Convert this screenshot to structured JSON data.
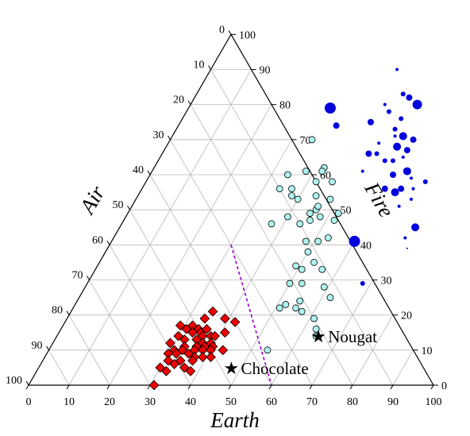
{
  "chart_data": {
    "type": "scatter",
    "subtype": "ternary",
    "axes": {
      "earth": {
        "label": "Earth",
        "range": [
          0,
          100
        ],
        "ticks": [
          0,
          10,
          20,
          30,
          40,
          50,
          60,
          70,
          80,
          90,
          100
        ]
      },
      "fire": {
        "label": "Fire",
        "range": [
          0,
          100
        ],
        "ticks": [
          0,
          10,
          20,
          30,
          40,
          50,
          60,
          70,
          80,
          90,
          100
        ]
      },
      "air": {
        "label": "Air",
        "range": [
          0,
          100
        ],
        "ticks": [
          0,
          10,
          20,
          30,
          40,
          50,
          60,
          70,
          80,
          90,
          100
        ]
      }
    },
    "grid": true,
    "grid_step": 10,
    "colors": {
      "blue": "#0000dd",
      "cyan": "#aef3ee",
      "red": "#ee0000",
      "divider": "#9900cc"
    },
    "divider_line": {
      "style": "dashed",
      "from": {
        "earth": 30,
        "fire": 40,
        "air": 30
      },
      "to": {
        "earth": 60,
        "fire": 0,
        "air": 40
      }
    },
    "annotations": [
      {
        "text": "Nougat",
        "marker": "★",
        "earth": 65,
        "fire": 14
      },
      {
        "text": "Chocolate",
        "marker": "★",
        "earth": 48,
        "fire": 5
      }
    ],
    "series": [
      {
        "marker": "circle",
        "color": "blue",
        "points": [
          {
            "earth": 46,
            "fire": 90,
            "size": 2
          },
          {
            "earth": 35,
            "fire": 79,
            "size": 7
          },
          {
            "earth": 48,
            "fire": 80,
            "size": 2
          },
          {
            "earth": 51,
            "fire": 83,
            "size": 3
          },
          {
            "earth": 53,
            "fire": 82,
            "size": 4
          },
          {
            "earth": 56,
            "fire": 80,
            "size": 6
          },
          {
            "earth": 50,
            "fire": 78,
            "size": 3
          },
          {
            "earth": 54,
            "fire": 76,
            "size": 3
          },
          {
            "earth": 39,
            "fire": 74,
            "size": 4
          },
          {
            "earth": 47,
            "fire": 75,
            "size": 4
          },
          {
            "earth": 54,
            "fire": 73,
            "size": 3
          },
          {
            "earth": 55,
            "fire": 71,
            "size": 2
          },
          {
            "earth": 52,
            "fire": 69,
            "size": 2
          },
          {
            "earth": 57,
            "fire": 71,
            "size": 5
          },
          {
            "earth": 57,
            "fire": 68,
            "size": 5
          },
          {
            "earth": 60,
            "fire": 70,
            "size": 4
          },
          {
            "earth": 51,
            "fire": 66,
            "size": 4
          },
          {
            "earth": 53,
            "fire": 66,
            "size": 3
          },
          {
            "earth": 56,
            "fire": 64,
            "size": 3
          },
          {
            "earth": 58,
            "fire": 64,
            "size": 3
          },
          {
            "earth": 60,
            "fire": 65,
            "size": 2
          },
          {
            "earth": 60,
            "fire": 67,
            "size": 4
          },
          {
            "earth": 52,
            "fire": 61,
            "size": 2
          },
          {
            "earth": 60,
            "fire": 60,
            "size": 4
          },
          {
            "earth": 63,
            "fire": 61,
            "size": 5
          },
          {
            "earth": 65,
            "fire": 59,
            "size": 2
          },
          {
            "earth": 60,
            "fire": 56,
            "size": 4
          },
          {
            "earth": 63,
            "fire": 55,
            "size": 5
          },
          {
            "earth": 64,
            "fire": 56,
            "size": 4
          },
          {
            "earth": 67,
            "fire": 56,
            "size": 2
          },
          {
            "earth": 69,
            "fire": 58,
            "size": 3
          },
          {
            "earth": 68,
            "fire": 53,
            "size": 2
          },
          {
            "earth": 66,
            "fire": 51,
            "size": 2
          },
          {
            "earth": 73,
            "fire": 45,
            "size": 5
          },
          {
            "earth": 72,
            "fire": 42,
            "size": 2
          },
          {
            "earth": 60,
            "fire": 41,
            "size": 7
          },
          {
            "earth": 74,
            "fire": 39,
            "size": 1
          },
          {
            "earth": 68,
            "fire": 29,
            "size": 3
          }
        ]
      },
      {
        "marker": "circle",
        "color": "cyan",
        "points": [
          {
            "earth": 35,
            "fire": 70
          },
          {
            "earth": 34,
            "fire": 60
          },
          {
            "earth": 38,
            "fire": 61
          },
          {
            "earth": 42,
            "fire": 62
          },
          {
            "earth": 42,
            "fire": 61
          },
          {
            "earth": 34,
            "fire": 56
          },
          {
            "earth": 37,
            "fire": 56
          },
          {
            "earth": 42,
            "fire": 58
          },
          {
            "earth": 46,
            "fire": 58
          },
          {
            "earth": 38,
            "fire": 54
          },
          {
            "earth": 44,
            "fire": 54
          },
          {
            "earth": 40,
            "fire": 53
          },
          {
            "earth": 46,
            "fire": 50
          },
          {
            "earth": 46,
            "fire": 51
          },
          {
            "earth": 48,
            "fire": 53
          },
          {
            "earth": 45,
            "fire": 49
          },
          {
            "earth": 40,
            "fire": 48
          },
          {
            "earth": 46,
            "fire": 47
          },
          {
            "earth": 48,
            "fire": 48
          },
          {
            "earth": 52,
            "fire": 49
          },
          {
            "earth": 37,
            "fire": 46
          },
          {
            "earth": 44,
            "fire": 46
          },
          {
            "earth": 52,
            "fire": 47
          },
          {
            "earth": 48,
            "fire": 41
          },
          {
            "earth": 51,
            "fire": 41
          },
          {
            "earth": 53,
            "fire": 42
          },
          {
            "earth": 50,
            "fire": 38
          },
          {
            "earth": 49,
            "fire": 34
          },
          {
            "earth": 51,
            "fire": 33
          },
          {
            "earth": 53,
            "fire": 35
          },
          {
            "earth": 56,
            "fire": 33
          },
          {
            "earth": 53,
            "fire": 29
          },
          {
            "earth": 50,
            "fire": 29
          },
          {
            "earth": 55,
            "fire": 24
          },
          {
            "earth": 59,
            "fire": 28
          },
          {
            "earth": 52,
            "fire": 23
          },
          {
            "earth": 51,
            "fire": 22
          },
          {
            "earth": 55,
            "fire": 22
          },
          {
            "earth": 57,
            "fire": 21
          },
          {
            "earth": 62,
            "fire": 25
          },
          {
            "earth": 61,
            "fire": 19
          },
          {
            "earth": 63,
            "fire": 16
          },
          {
            "earth": 64,
            "fire": 14
          },
          {
            "earth": 54,
            "fire": 10
          }
        ]
      },
      {
        "marker": "diamond",
        "color": "red",
        "points": [
          {
            "earth": 35,
            "fire": 21
          },
          {
            "earth": 34,
            "fire": 19
          },
          {
            "earth": 39,
            "fire": 19
          },
          {
            "earth": 42,
            "fire": 18
          },
          {
            "earth": 29,
            "fire": 17
          },
          {
            "earth": 32,
            "fire": 17
          },
          {
            "earth": 34,
            "fire": 16
          },
          {
            "earth": 36,
            "fire": 16
          },
          {
            "earth": 31,
            "fire": 16
          },
          {
            "earth": 33,
            "fire": 15
          },
          {
            "earth": 35,
            "fire": 15
          },
          {
            "earth": 36,
            "fire": 14
          },
          {
            "earth": 38,
            "fire": 14
          },
          {
            "earth": 39,
            "fire": 14
          },
          {
            "earth": 41,
            "fire": 15
          },
          {
            "earth": 30,
            "fire": 14
          },
          {
            "earth": 32,
            "fire": 13
          },
          {
            "earth": 35,
            "fire": 13
          },
          {
            "earth": 37,
            "fire": 12
          },
          {
            "earth": 39,
            "fire": 12
          },
          {
            "earth": 29,
            "fire": 12
          },
          {
            "earth": 33,
            "fire": 11
          },
          {
            "earth": 36,
            "fire": 11
          },
          {
            "earth": 38,
            "fire": 11
          },
          {
            "earth": 40,
            "fire": 11
          },
          {
            "earth": 31,
            "fire": 10
          },
          {
            "earth": 33,
            "fire": 10
          },
          {
            "earth": 36,
            "fire": 10
          },
          {
            "earth": 38,
            "fire": 10
          },
          {
            "earth": 40,
            "fire": 10
          },
          {
            "earth": 43,
            "fire": 10
          },
          {
            "earth": 30,
            "fire": 9
          },
          {
            "earth": 32,
            "fire": 9
          },
          {
            "earth": 35,
            "fire": 9
          },
          {
            "earth": 37,
            "fire": 8
          },
          {
            "earth": 39,
            "fire": 8
          },
          {
            "earth": 41,
            "fire": 8
          },
          {
            "earth": 31,
            "fire": 7
          },
          {
            "earth": 34,
            "fire": 7
          },
          {
            "earth": 37,
            "fire": 7
          },
          {
            "earth": 33,
            "fire": 6
          },
          {
            "earth": 36,
            "fire": 5
          },
          {
            "earth": 38,
            "fire": 4
          },
          {
            "earth": 30,
            "fire": 5
          },
          {
            "earth": 32,
            "fire": 4
          },
          {
            "earth": 31,
            "fire": 0
          }
        ]
      }
    ]
  }
}
